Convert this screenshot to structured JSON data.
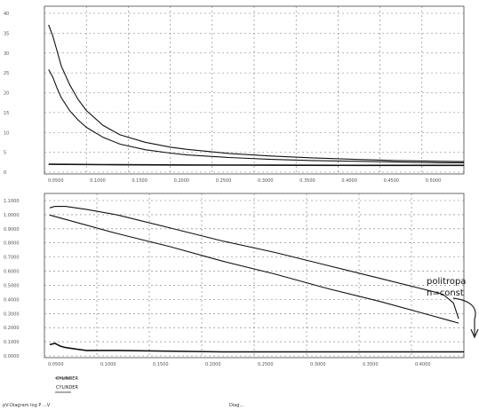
{
  "chart_data": [
    {
      "type": "line",
      "title": "",
      "xlabel": "",
      "ylabel": "",
      "y_ticks": [
        "40",
        "35",
        "30",
        "25",
        "20",
        "15",
        "10",
        "5",
        "0"
      ],
      "x_ticks": [
        "0.0500",
        "0.1000",
        "0.1500",
        "0.2000",
        "0.2500",
        "0.3000",
        "0.3500",
        "0.4000",
        "0.4500",
        "0.5000"
      ],
      "xlim": [
        0.03,
        0.53
      ],
      "ylim": [
        -2,
        43
      ],
      "grid": true,
      "series": [
        {
          "x": [
            0.035,
            0.04,
            0.045,
            0.05,
            0.06,
            0.07,
            0.08,
            0.1,
            0.12,
            0.15,
            0.18,
            0.2,
            0.25,
            0.3,
            0.35,
            0.4,
            0.45,
            0.5,
            0.53
          ],
          "y": [
            38,
            35,
            31,
            27,
            22,
            18,
            15,
            11,
            8.5,
            6.5,
            5.2,
            4.6,
            3.5,
            2.8,
            2.3,
            1.9,
            1.6,
            1.4,
            1.3
          ]
        },
        {
          "x": [
            0.035,
            0.04,
            0.045,
            0.05,
            0.06,
            0.07,
            0.08,
            0.1,
            0.12,
            0.15,
            0.18,
            0.2,
            0.25,
            0.3,
            0.35,
            0.4,
            0.45,
            0.5,
            0.53
          ],
          "y": [
            26,
            24,
            21,
            18.5,
            15,
            12.5,
            10.5,
            7.8,
            6,
            4.5,
            3.6,
            3.1,
            2.4,
            1.9,
            1.6,
            1.4,
            1.2,
            1.0,
            1.0
          ]
        },
        {
          "x": [
            0.035,
            0.1,
            0.2,
            0.3,
            0.4,
            0.5,
            0.53
          ],
          "y": [
            0.6,
            0.5,
            0.4,
            0.35,
            0.3,
            0.3,
            0.3
          ]
        }
      ]
    },
    {
      "type": "line",
      "title": "",
      "xlabel": "",
      "ylabel": "",
      "y_ticks": [
        "1.1000",
        "1.0000",
        "0.9000",
        "0.8000",
        "0.7000",
        "0.6000",
        "0.5000",
        "0.4000",
        "0.3000",
        "0.2000",
        "0.1000",
        "0.0000"
      ],
      "x_ticks": [
        "0.0500",
        "0.1000",
        "0.1500",
        "0.2000",
        "0.2500",
        "0.3000",
        "0.3500",
        "0.4000"
      ],
      "xlim": [
        0.03,
        0.43
      ],
      "ylim": [
        -0.02,
        1.12
      ],
      "grid": true,
      "series": [
        {
          "x": [
            0.035,
            0.04,
            0.05,
            0.07,
            0.1,
            0.15,
            0.2,
            0.25,
            0.3,
            0.35,
            0.4,
            0.41,
            0.42,
            0.425
          ],
          "y": [
            1.02,
            1.03,
            1.03,
            1.01,
            0.97,
            0.88,
            0.79,
            0.71,
            0.62,
            0.53,
            0.44,
            0.42,
            0.36,
            0.25
          ]
        },
        {
          "x": [
            0.035,
            0.05,
            0.1,
            0.15,
            0.2,
            0.25,
            0.3,
            0.35,
            0.4,
            0.425
          ],
          "y": [
            0.97,
            0.94,
            0.84,
            0.75,
            0.65,
            0.56,
            0.46,
            0.37,
            0.27,
            0.22
          ]
        },
        {
          "x": [
            0.035,
            0.04,
            0.045,
            0.05,
            0.06,
            0.07,
            0.1,
            0.2,
            0.3,
            0.4,
            0.43
          ],
          "y": [
            0.07,
            0.08,
            0.06,
            0.05,
            0.04,
            0.03,
            0.03,
            0.02,
            0.02,
            0.02,
            0.02
          ]
        }
      ],
      "annotation": {
        "text_line1": "politropa",
        "text_line2": "n=const"
      }
    }
  ],
  "legend": {
    "label_1": "CYLINDER",
    "label_2": "CYLINDER"
  },
  "footer": {
    "left": "pV-Diagram log P ...V",
    "right": "Diag..."
  }
}
